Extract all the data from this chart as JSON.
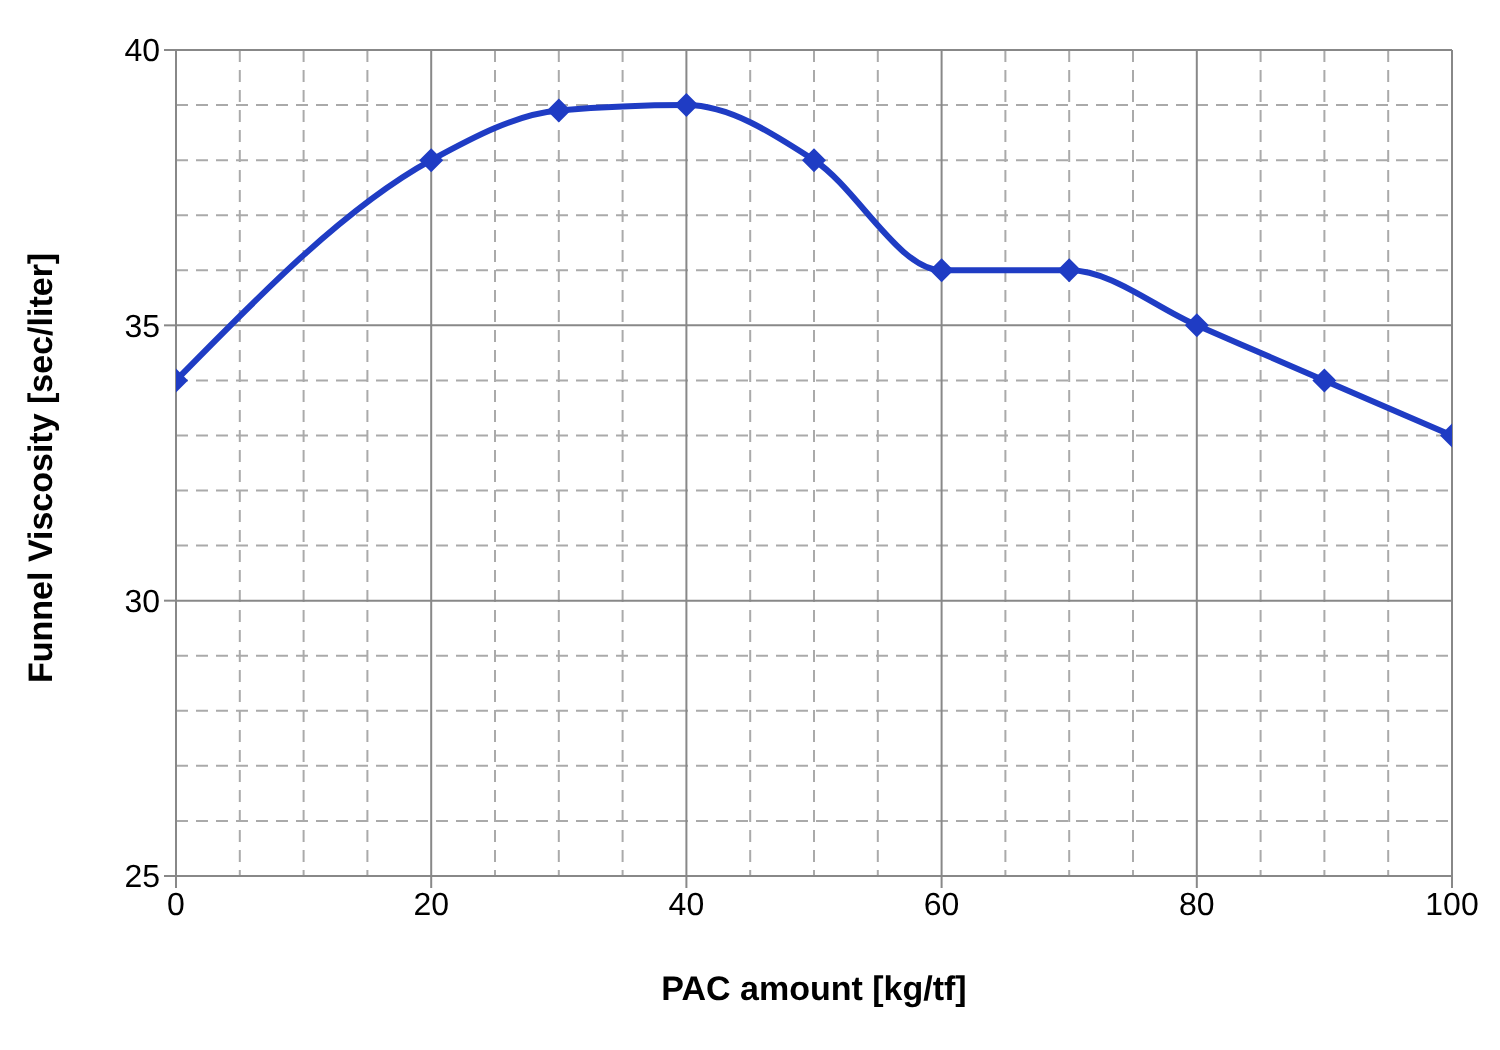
{
  "chart_data": {
    "type": "line",
    "xlabel": "PAC amount [kg/tf]",
    "ylabel": "Funnel Viscosity [sec/liter]",
    "x": [
      0,
      20,
      30,
      40,
      50,
      60,
      70,
      80,
      90,
      100
    ],
    "series": [
      {
        "color": "#1f3cc4",
        "values": [
          34,
          38,
          38.9,
          39,
          38,
          36,
          36,
          35,
          34,
          33
        ]
      }
    ],
    "xlim": [
      0,
      100
    ],
    "xticks": [
      0,
      20,
      40,
      60,
      80,
      100
    ],
    "ylim": [
      25,
      40
    ],
    "yticks": [
      25,
      30,
      35,
      40
    ],
    "grid": true,
    "marker": "diamond",
    "line_style": "solid",
    "legend": false
  }
}
